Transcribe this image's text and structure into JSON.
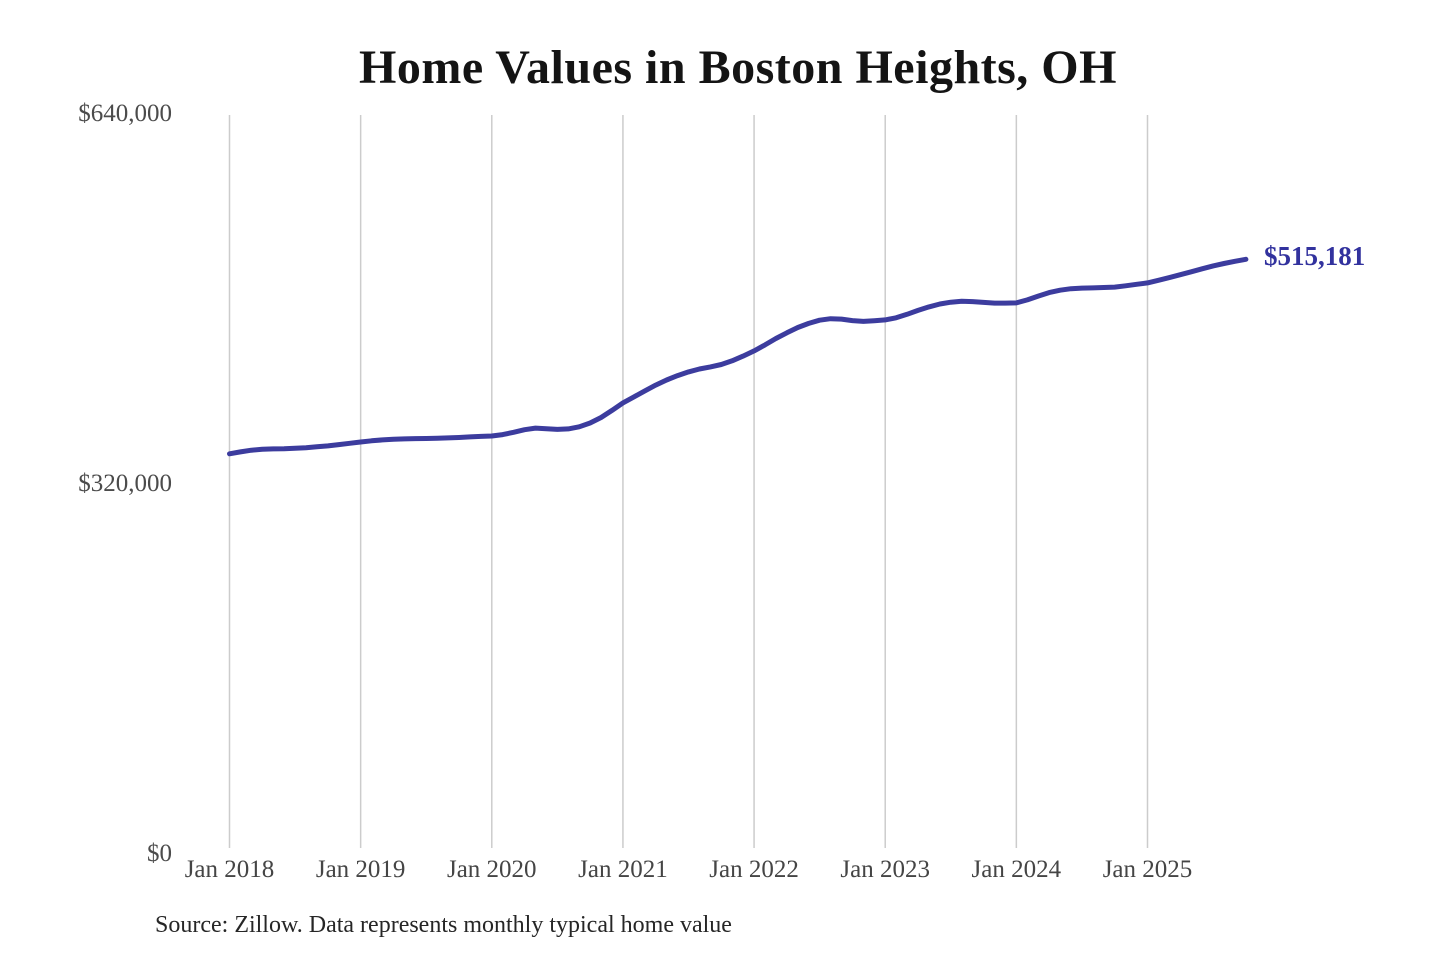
{
  "chart": {
    "title": "Home Values in Boston Heights, OH",
    "end_label": "$515,181",
    "source_note": "Source: Zillow. Data represents monthly typical home value",
    "colors": {
      "line": "#3c3c9e",
      "grid": "#cccccc",
      "axis_text": "#4b4b4b",
      "title_text": "#141414",
      "end_label_text": "#32329e",
      "source_text": "#262626",
      "background": "#ffffff"
    }
  },
  "chart_data": {
    "type": "line",
    "title": "Home Values in Boston Heights, OH",
    "series_name": "Monthly typical home value (Zillow)",
    "legend": "none",
    "grid": "vertical-year-gridlines-only",
    "ylim": [
      0,
      640000
    ],
    "y_ticks": [
      0,
      320000,
      640000
    ],
    "y_tick_labels": [
      "$0",
      "$320,000",
      "$640,000"
    ],
    "x_tick_labels": [
      "Jan 2018",
      "Jan 2019",
      "Jan 2020",
      "Jan 2021",
      "Jan 2022",
      "Jan 2023",
      "Jan 2024",
      "Jan 2025"
    ],
    "last_point_label": "$515,181",
    "last_value": 515181,
    "x": [
      "2018-01",
      "2018-02",
      "2018-03",
      "2018-04",
      "2018-05",
      "2018-06",
      "2018-07",
      "2018-08",
      "2018-09",
      "2018-10",
      "2018-11",
      "2018-12",
      "2019-01",
      "2019-02",
      "2019-03",
      "2019-04",
      "2019-05",
      "2019-06",
      "2019-07",
      "2019-08",
      "2019-09",
      "2019-10",
      "2019-11",
      "2019-12",
      "2020-01",
      "2020-02",
      "2020-03",
      "2020-04",
      "2020-05",
      "2020-06",
      "2020-07",
      "2020-08",
      "2020-09",
      "2020-10",
      "2020-11",
      "2020-12",
      "2021-01",
      "2021-02",
      "2021-03",
      "2021-04",
      "2021-05",
      "2021-06",
      "2021-07",
      "2021-08",
      "2021-09",
      "2021-10",
      "2021-11",
      "2021-12",
      "2022-01",
      "2022-02",
      "2022-03",
      "2022-04",
      "2022-05",
      "2022-06",
      "2022-07",
      "2022-08",
      "2022-09",
      "2022-10",
      "2022-11",
      "2022-12",
      "2023-01",
      "2023-02",
      "2023-03",
      "2023-04",
      "2023-05",
      "2023-06",
      "2023-07",
      "2023-08",
      "2023-09",
      "2023-10",
      "2023-11",
      "2023-12",
      "2024-01",
      "2024-02",
      "2024-03",
      "2024-04",
      "2024-05",
      "2024-06",
      "2024-07",
      "2024-08",
      "2024-09",
      "2024-10",
      "2024-11",
      "2024-12",
      "2025-01",
      "2025-02",
      "2025-03",
      "2025-04",
      "2025-05",
      "2025-06",
      "2025-07",
      "2025-08",
      "2025-09",
      "2025-10"
    ],
    "values": [
      347000,
      348600,
      350100,
      350900,
      351200,
      351400,
      351800,
      352300,
      353000,
      353800,
      354900,
      356100,
      357200,
      358200,
      359000,
      359600,
      359900,
      360100,
      360200,
      360400,
      360700,
      361100,
      361600,
      362000,
      362400,
      363600,
      365600,
      367800,
      369200,
      368700,
      368100,
      368500,
      370300,
      373600,
      378400,
      384500,
      391000,
      396200,
      401400,
      406400,
      410800,
      414600,
      417800,
      420300,
      422100,
      424200,
      427400,
      431500,
      436000,
      441200,
      446700,
      451600,
      456200,
      459800,
      462500,
      463800,
      463500,
      462200,
      461500,
      462100,
      462800,
      464600,
      467600,
      471000,
      474000,
      476500,
      478100,
      478900,
      478600,
      477900,
      477300,
      477300,
      477500,
      480100,
      483400,
      486400,
      488500,
      489800,
      490300,
      490500,
      490800,
      491200,
      492300,
      493600,
      494800,
      497000,
      499400,
      501900,
      504400,
      507000,
      509500,
      511600,
      513500,
      515181
    ]
  }
}
